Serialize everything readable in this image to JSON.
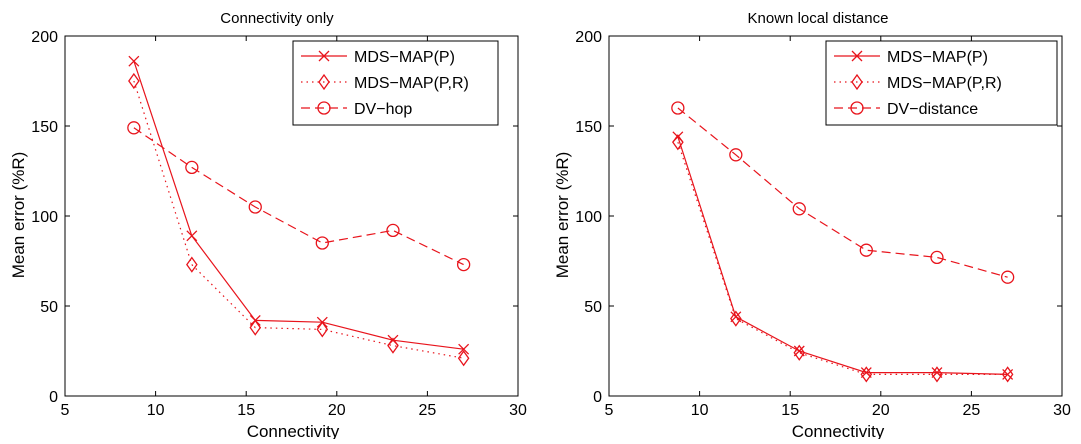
{
  "chart_data": [
    {
      "type": "line",
      "title": "Connectivity only",
      "xlabel": "Connectivity",
      "ylabel": "Mean error (%R)",
      "xlim": [
        5,
        30
      ],
      "ylim": [
        0,
        200
      ],
      "xticks": [
        5,
        10,
        15,
        20,
        25,
        30
      ],
      "yticks": [
        0,
        50,
        100,
        150,
        200
      ],
      "grid": false,
      "legend_position": "top-right",
      "colors": {
        "series": "#e8141c",
        "axis": "#000000"
      },
      "series": [
        {
          "name": "MDS−MAP(P)",
          "marker": "x",
          "linestyle": "solid",
          "x": [
            8.8,
            12.0,
            15.5,
            19.2,
            23.1,
            27.0
          ],
          "y": [
            186,
            89,
            42,
            41,
            31,
            26
          ]
        },
        {
          "name": "MDS−MAP(P,R)",
          "marker": "diamond",
          "linestyle": "dotted",
          "x": [
            8.8,
            12.0,
            15.5,
            19.2,
            23.1,
            27.0
          ],
          "y": [
            175,
            73,
            38,
            37,
            28,
            21
          ]
        },
        {
          "name": "DV−hop",
          "marker": "circle",
          "linestyle": "dashed",
          "x": [
            8.8,
            12.0,
            15.5,
            19.2,
            23.1,
            27.0
          ],
          "y": [
            149,
            127,
            105,
            85,
            92,
            73
          ]
        }
      ]
    },
    {
      "type": "line",
      "title": "Known local distance",
      "xlabel": "Connectivity",
      "ylabel": "Mean error (%R)",
      "xlim": [
        5,
        30
      ],
      "ylim": [
        0,
        200
      ],
      "xticks": [
        5,
        10,
        15,
        20,
        25,
        30
      ],
      "yticks": [
        0,
        50,
        100,
        150,
        200
      ],
      "grid": false,
      "legend_position": "top-right",
      "colors": {
        "series": "#e8141c",
        "axis": "#000000"
      },
      "series": [
        {
          "name": "MDS−MAP(P)",
          "marker": "x",
          "linestyle": "solid",
          "x": [
            8.8,
            12.0,
            15.5,
            19.2,
            23.1,
            27.0
          ],
          "y": [
            144,
            44,
            25,
            13,
            13,
            12
          ]
        },
        {
          "name": "MDS−MAP(P,R)",
          "marker": "diamond",
          "linestyle": "dotted",
          "x": [
            8.8,
            12.0,
            15.5,
            19.2,
            23.1,
            27.0
          ],
          "y": [
            141,
            43,
            24,
            12,
            12,
            12
          ]
        },
        {
          "name": "DV−distance",
          "marker": "circle",
          "linestyle": "dashed",
          "x": [
            8.8,
            12.0,
            15.5,
            19.2,
            23.1,
            27.0
          ],
          "y": [
            160,
            134,
            104,
            81,
            77,
            66
          ]
        }
      ]
    }
  ]
}
